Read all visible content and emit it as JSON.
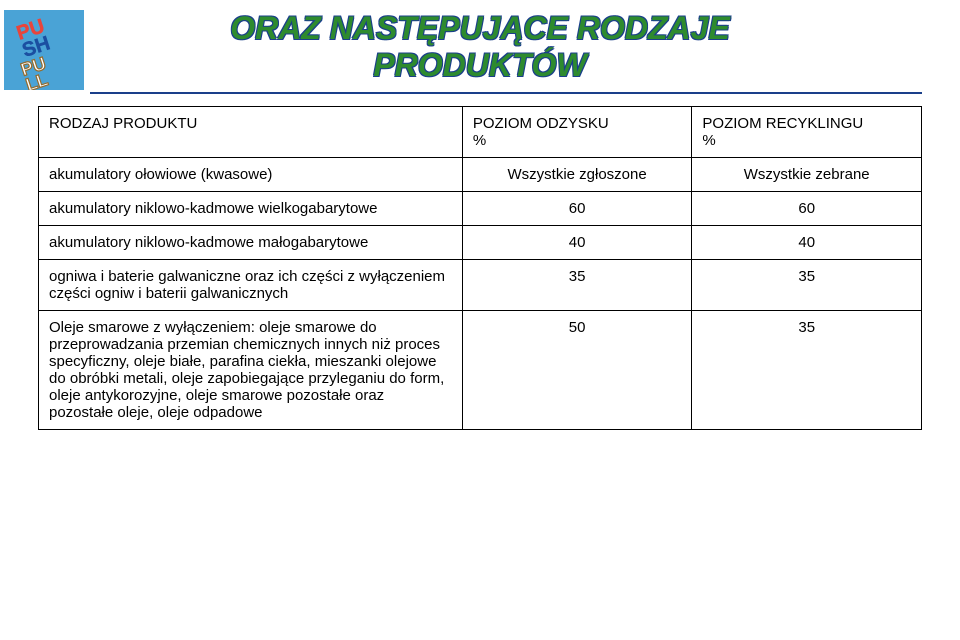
{
  "title_line1": "ORAZ NASTĘPUJĄCE RODZAJE",
  "title_line2": "PRODUKTÓW",
  "colors": {
    "title_fill": "#2e8b2e",
    "title_outline": "#1a3f8a",
    "rule": "#1a3f8a",
    "table_border": "#000000",
    "background": "#ffffff"
  },
  "logo": {
    "bg": "#4aa3d6",
    "push_top": "#e8453c",
    "push_bot": "#1b4fa1",
    "pull_fill": "#ffffff",
    "pull_stroke": "#946b2d"
  },
  "table": {
    "headers": [
      "RODZAJ PRODUKTU",
      "POZIOM ODZYSKU\n%",
      "POZIOM RECYKLINGU\n%"
    ],
    "rows": [
      {
        "label": "akumulatory ołowiowe (kwasowe)",
        "a": "Wszystkie zgłoszone",
        "b": "Wszystkie zebrane",
        "center": true
      },
      {
        "label": "akumulatory niklowo-kadmowe wielkogabarytowe",
        "a": "60",
        "b": "60",
        "center": true
      },
      {
        "label": "akumulatory niklowo-kadmowe małogabarytowe",
        "a": "40",
        "b": "40",
        "center": true
      },
      {
        "label": "ogniwa i baterie galwaniczne oraz ich części z wyłączeniem części ogniw i baterii galwanicznych",
        "a": "35",
        "b": "35",
        "center": true
      },
      {
        "label": "Oleje smarowe z wyłączeniem: oleje smarowe do przeprowadzania przemian chemicznych innych niż proces specyficzny, oleje białe, parafina ciekła, mieszanki olejowe do obróbki metali, oleje zapobiegające przyleganiu do form, oleje antykorozyjne, oleje smarowe pozostałe oraz pozostałe oleje, oleje odpadowe",
        "a": "50",
        "b": "35",
        "center": true
      }
    ]
  }
}
